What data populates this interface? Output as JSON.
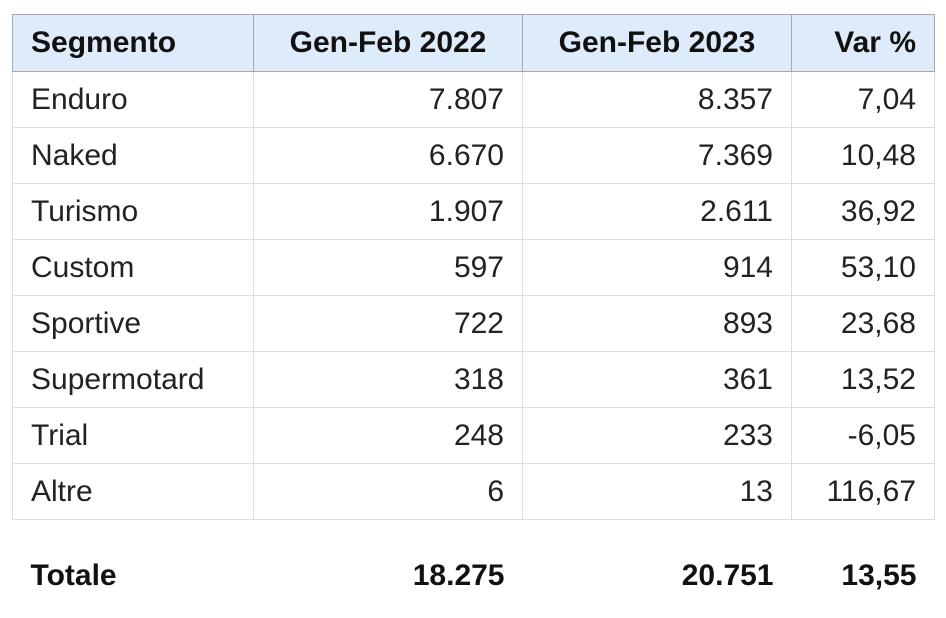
{
  "headers": [
    "Segmento",
    "Gen-Feb 2022",
    "Gen-Feb 2023",
    "Var %"
  ],
  "rows": [
    [
      "Enduro",
      "7.807",
      "8.357",
      "7,04"
    ],
    [
      "Naked",
      "6.670",
      "7.369",
      "10,48"
    ],
    [
      "Turismo",
      "1.907",
      "2.611",
      "36,92"
    ],
    [
      "Custom",
      "597",
      "914",
      "53,10"
    ],
    [
      "Sportive",
      "722",
      "893",
      "23,68"
    ],
    [
      "Supermotard",
      "318",
      "361",
      "13,52"
    ],
    [
      "Trial",
      "248",
      "233",
      "-6,05"
    ],
    [
      "Altre",
      "6",
      "13",
      "116,67"
    ]
  ],
  "total": [
    "Totale",
    "18.275",
    "20.751",
    "13,55"
  ],
  "colors": {
    "header_bg": "#deebfa",
    "border": "#dcdcdc"
  }
}
